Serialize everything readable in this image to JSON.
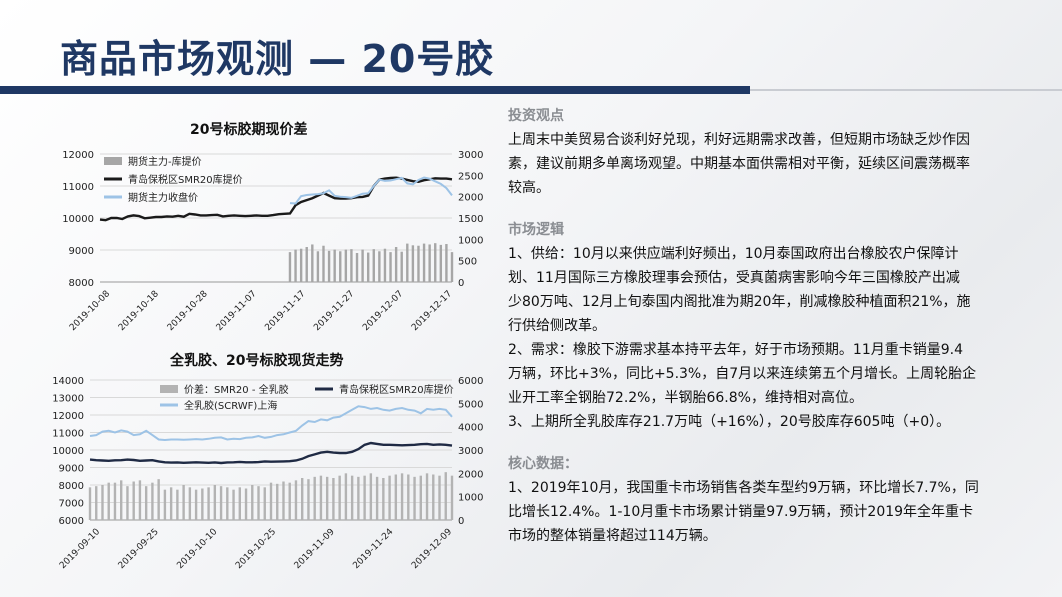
{
  "page_title": "商品市场观测 — 20号胶",
  "chart_data": [
    {
      "type": "line",
      "title": "20号标胶期现价差",
      "left_axis": {
        "ticks": [
          "8000",
          "9000",
          "10000",
          "11000",
          "12000"
        ],
        "range": [
          8000,
          12000
        ]
      },
      "right_axis": {
        "ticks": [
          "0",
          "500",
          "1000",
          "1500",
          "2000",
          "2500",
          "3000"
        ],
        "range": [
          0,
          3000
        ]
      },
      "x_ticks": [
        "2019-10-08",
        "2019-10-18",
        "2019-10-28",
        "2019-11-07",
        "2019-11-17",
        "2019-11-27",
        "2019-12-07",
        "2019-12-17"
      ],
      "legend": [
        "期货主力-库提价",
        "青岛保税区SMR20库提价",
        "期货主力收盘价"
      ],
      "series": [
        {
          "name": "青岛保税区SMR20库提价",
          "axis": "left",
          "color": "#1a1a1a",
          "values": [
            9950,
            9930,
            10000,
            10000,
            9970,
            10050,
            10080,
            10060,
            9990,
            10010,
            10030,
            10030,
            10050,
            10040,
            10070,
            10040,
            10130,
            10110,
            10080,
            10080,
            10090,
            10100,
            10050,
            10070,
            10080,
            10070,
            10060,
            10070,
            10080,
            10070,
            10070,
            10090,
            10120,
            10130,
            10140,
            10400,
            10500,
            10560,
            10620,
            10700,
            10780,
            10700,
            10620,
            10610,
            10610,
            10620,
            10650,
            10660,
            10700,
            11000,
            11200,
            11230,
            11250,
            11260,
            11230,
            11190,
            11150,
            11130,
            11180,
            11210,
            11240,
            11230,
            11230,
            11210
          ]
        },
        {
          "name": "期货主力收盘价",
          "axis": "right",
          "color": "#9dc3e6",
          "start_index": 34,
          "values": [
            1850,
            1840,
            2010,
            2040,
            2050,
            2060,
            2080,
            2150,
            2020,
            2000,
            1990,
            1970,
            2020,
            2070,
            2080,
            2250,
            2400,
            2370,
            2380,
            2410,
            2440,
            2310,
            2290,
            2390,
            2450,
            2420,
            2360,
            2300,
            2200,
            2030
          ]
        },
        {
          "name": "期货主力-库提价",
          "axis": "right",
          "color": "#a6a6a6",
          "type": "bar",
          "start_index": 34,
          "values": [
            700,
            760,
            780,
            820,
            880,
            720,
            850,
            730,
            760,
            720,
            760,
            770,
            680,
            760,
            690,
            770,
            720,
            780,
            700,
            820,
            710,
            900,
            860,
            850,
            900,
            880,
            910,
            870,
            890,
            700
          ]
        }
      ]
    },
    {
      "type": "line",
      "title": "全乳胶、20号标胶现货走势",
      "left_axis": {
        "ticks": [
          "6000",
          "7000",
          "8000",
          "9000",
          "10000",
          "11000",
          "12000",
          "13000",
          "14000"
        ],
        "range": [
          6000,
          14000
        ]
      },
      "right_axis": {
        "ticks": [
          "0",
          "1000",
          "2000",
          "3000",
          "4000",
          "5000",
          "6000"
        ],
        "range": [
          0,
          6000
        ]
      },
      "x_ticks": [
        "2019-09-10",
        "2019-09-25",
        "2019-10-10",
        "2019-10-25",
        "2019-11-09",
        "2019-11-24",
        "2019-12-09"
      ],
      "legend": [
        "价差：SMR20 - 全乳胶",
        "青岛保税区SMR20库提价",
        "全乳胶(SCRWF)上海"
      ],
      "series": [
        {
          "name": "全乳胶(SCRWF)上海",
          "axis": "left",
          "color": "#9dc3e6",
          "values": [
            10800,
            10850,
            11050,
            11100,
            11000,
            11120,
            11050,
            10850,
            10900,
            11100,
            10850,
            10600,
            10570,
            10600,
            10600,
            10580,
            10600,
            10620,
            10600,
            10640,
            10700,
            10720,
            10600,
            10640,
            10620,
            10700,
            10720,
            10800,
            10700,
            10750,
            10850,
            10900,
            11000,
            11100,
            11400,
            11650,
            11600,
            11750,
            11700,
            11850,
            11900,
            12100,
            12300,
            12500,
            12450,
            12350,
            12400,
            12300,
            12250,
            12350,
            12400,
            12300,
            12250,
            12100,
            12350,
            12300,
            12350,
            12300,
            11900
          ]
        },
        {
          "name": "青岛保税区SMR20库提价",
          "axis": "left",
          "color": "#1f2a44",
          "values": [
            9450,
            9420,
            9400,
            9380,
            9410,
            9420,
            9450,
            9430,
            9380,
            9400,
            9420,
            9350,
            9300,
            9280,
            9290,
            9270,
            9280,
            9300,
            9280,
            9270,
            9290,
            9260,
            9290,
            9300,
            9320,
            9300,
            9300,
            9310,
            9350,
            9330,
            9340,
            9350,
            9360,
            9400,
            9500,
            9650,
            9750,
            9850,
            9900,
            9850,
            9830,
            9830,
            9900,
            10050,
            10300,
            10400,
            10350,
            10300,
            10300,
            10280,
            10270,
            10280,
            10300,
            10330,
            10350,
            10300,
            10320,
            10300,
            10250
          ]
        },
        {
          "name": "价差：SMR20 - 全乳胶",
          "axis": "right",
          "color": "#b3b3b3",
          "type": "bar",
          "values": [
            1400,
            1450,
            1500,
            1600,
            1600,
            1700,
            1450,
            1650,
            1700,
            1450,
            1600,
            1750,
            1300,
            1400,
            1300,
            1500,
            1400,
            1300,
            1350,
            1400,
            1500,
            1450,
            1400,
            1300,
            1400,
            1350,
            1500,
            1450,
            1400,
            1600,
            1550,
            1650,
            1600,
            1700,
            1800,
            1750,
            1850,
            1900,
            1850,
            1800,
            1900,
            2000,
            1900,
            1850,
            1900,
            2000,
            1850,
            1800,
            1900,
            1950,
            2000,
            1950,
            1850,
            1900,
            2000,
            1950,
            1900,
            2050,
            1900
          ]
        }
      ]
    }
  ],
  "right_panel": {
    "sections": [
      {
        "heading": "投资观点",
        "lines": [
          "上周末中美贸易合谈利好兑现，利好远期需求改善，但短期市场缺乏炒作因",
          "素，建议前期多单离场观望。中期基本面供需相对平衡，延续区间震荡概率",
          "较高。"
        ]
      },
      {
        "heading": "市场逻辑",
        "lines": [
          "1、供给：10月以来供应端利好频出，10月泰国政府出台橡胶农户保障计",
          "划、11月国际三方橡胶理事会预估，受真菌病害影响今年三国橡胶产出减",
          "少80万吨、12月上旬泰国内阁批准为期20年，削减橡胶种植面积21%，施",
          "行供给侧改革。",
          "2、需求：橡胶下游需求基本持平去年，好于市场预期。11月重卡销量9.4",
          "万辆，环比+3%，同比+5.3%，自7月以来连续第五个月增长。上周轮胎企",
          "业开工率全钢胎72.2%，半钢胎66.8%，维持相对高位。",
          "3、上期所全乳胶库存21.7万吨（+16%），20号胶库存605吨（+0）。"
        ]
      },
      {
        "heading": "核心数据：",
        "lines": [
          "1、2019年10月，我国重卡市场销售各类车型约9万辆，环比增长7.7%，同",
          "比增长12.4%。1-10月重卡市场累计销量97.9万辆，预计2019年全年重卡",
          "市场的整体销量将超过114万辆。"
        ]
      }
    ]
  }
}
